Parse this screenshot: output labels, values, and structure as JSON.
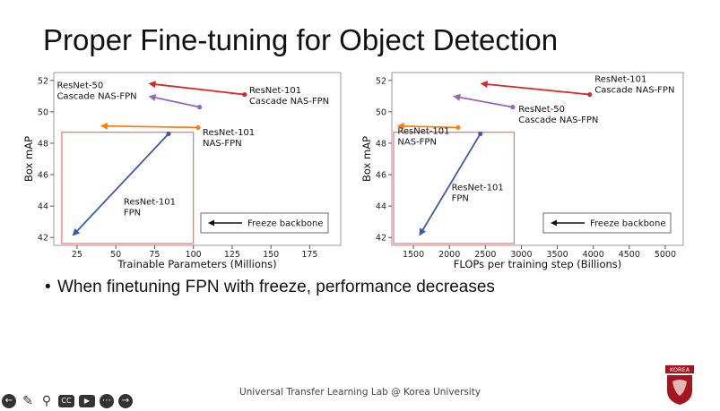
{
  "slide": {
    "title": "Proper Fine-tuning for Object Detection",
    "bullet": "When finetuning FPN with freeze, performance decreases",
    "footer": "Universal Transfer Learning Lab @ Korea University",
    "logo_text": "KOREA"
  },
  "toolbar": {
    "icons": [
      "back-arrow-icon",
      "pen-icon",
      "search-icon",
      "cc-icon",
      "camera-icon",
      "more-icon",
      "forward-arrow-icon"
    ]
  },
  "colors": {
    "red": "#d62728",
    "purple": "#9467bd",
    "orange": "#ff7f0e",
    "blue": "#3b5ba8",
    "freeze_box": "#e8707a",
    "logo": "#a3161f"
  },
  "chart_data": [
    {
      "type": "scatter",
      "xlabel": "Trainable Parameters (Millions)",
      "ylabel": "Box mAP",
      "xlim": [
        10,
        195
      ],
      "ylim": [
        41.5,
        52.5
      ],
      "xticks": [
        25,
        50,
        75,
        100,
        125,
        150,
        175
      ],
      "yticks": [
        42,
        44,
        46,
        48,
        50,
        52
      ],
      "legend": {
        "label": "Freeze backbone",
        "placement": "bottom-right"
      },
      "freeze_box": {
        "x": [
          14,
          100
        ],
        "y": [
          41.5,
          48.7
        ]
      },
      "series": [
        {
          "color": "red",
          "from": [
            133,
            51.1
          ],
          "to": [
            71,
            51.8
          ]
        },
        {
          "color": "purple",
          "from": [
            104,
            50.3
          ],
          "to": [
            71,
            51.0
          ]
        },
        {
          "color": "orange",
          "from": [
            103,
            49.0
          ],
          "to": [
            40,
            49.1
          ]
        },
        {
          "color": "blue",
          "from": [
            84,
            48.6
          ],
          "to": [
            22,
            42.1
          ]
        }
      ],
      "annotations": [
        {
          "lines": [
            "ResNet-50",
            "Cascade NAS-FPN"
          ],
          "x": 12,
          "y": 51.5
        },
        {
          "lines": [
            "ResNet-101",
            "Cascade NAS-FPN"
          ],
          "x": 136,
          "y": 51.2
        },
        {
          "lines": [
            "ResNet-101",
            "NAS-FPN"
          ],
          "x": 106,
          "y": 48.5
        },
        {
          "lines": [
            "ResNet-101",
            "FPN"
          ],
          "x": 55,
          "y": 44.1
        }
      ]
    },
    {
      "type": "scatter",
      "xlabel": "FLOPs per training step (Billions)",
      "ylabel": "Box mAP",
      "xlim": [
        1200,
        5250
      ],
      "ylim": [
        41.5,
        52.5
      ],
      "xticks": [
        1500,
        2000,
        2500,
        3000,
        3500,
        4000,
        4500,
        5000
      ],
      "yticks": [
        42,
        44,
        46,
        48,
        50,
        52
      ],
      "legend": {
        "label": "Freeze backbone",
        "placement": "bottom-right"
      },
      "freeze_box": {
        "x": [
          1200,
          2900
        ],
        "y": [
          41.5,
          48.7
        ]
      },
      "series": [
        {
          "color": "red",
          "from": [
            3950,
            51.1
          ],
          "to": [
            2430,
            51.8
          ]
        },
        {
          "color": "purple",
          "from": [
            2880,
            50.3
          ],
          "to": [
            2050,
            51.0
          ]
        },
        {
          "color": "orange",
          "from": [
            2120,
            49.0
          ],
          "to": [
            1270,
            49.1
          ]
        },
        {
          "color": "blue",
          "from": [
            2430,
            48.6
          ],
          "to": [
            1580,
            42.1
          ]
        }
      ],
      "annotations": [
        {
          "lines": [
            "ResNet-101",
            "Cascade NAS-FPN"
          ],
          "x": 4020,
          "y": 51.9
        },
        {
          "lines": [
            "ResNet-50",
            "Cascade NAS-FPN"
          ],
          "x": 2960,
          "y": 50.0
        },
        {
          "lines": [
            "ResNet-101",
            "NAS-FPN"
          ],
          "x": 1280,
          "y": 48.6
        },
        {
          "lines": [
            "ResNet-101",
            "FPN"
          ],
          "x": 2030,
          "y": 45.0
        }
      ]
    }
  ]
}
